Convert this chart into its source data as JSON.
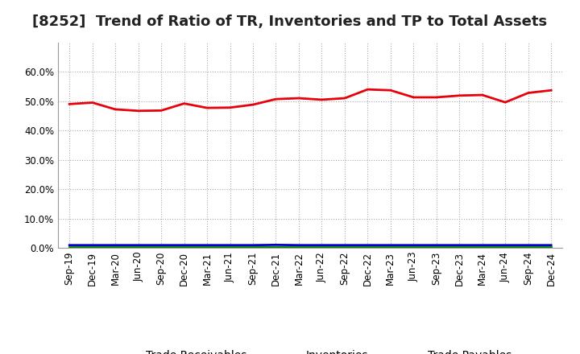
{
  "title": "[8252]  Trend of Ratio of TR, Inventories and TP to Total Assets",
  "x_labels": [
    "Sep-19",
    "Dec-19",
    "Mar-20",
    "Jun-20",
    "Sep-20",
    "Dec-20",
    "Mar-21",
    "Jun-21",
    "Sep-21",
    "Dec-21",
    "Mar-22",
    "Jun-22",
    "Sep-22",
    "Dec-22",
    "Mar-23",
    "Jun-23",
    "Sep-23",
    "Dec-23",
    "Mar-24",
    "Jun-24",
    "Sep-24",
    "Dec-24"
  ],
  "trade_receivables": [
    0.49,
    0.495,
    0.472,
    0.467,
    0.468,
    0.492,
    0.477,
    0.478,
    0.488,
    0.507,
    0.51,
    0.505,
    0.51,
    0.54,
    0.537,
    0.513,
    0.513,
    0.519,
    0.521,
    0.496,
    0.528,
    0.537
  ],
  "inventories": [
    0.009,
    0.009,
    0.009,
    0.009,
    0.009,
    0.009,
    0.009,
    0.009,
    0.009,
    0.01,
    0.009,
    0.009,
    0.009,
    0.009,
    0.009,
    0.009,
    0.009,
    0.009,
    0.009,
    0.009,
    0.009,
    0.009
  ],
  "trade_payables": [
    0.004,
    0.004,
    0.004,
    0.004,
    0.004,
    0.004,
    0.004,
    0.004,
    0.004,
    0.004,
    0.004,
    0.004,
    0.004,
    0.004,
    0.004,
    0.004,
    0.004,
    0.004,
    0.004,
    0.004,
    0.004,
    0.004
  ],
  "tr_color": "#e8000a",
  "inv_color": "#0000cc",
  "tp_color": "#008000",
  "bg_color": "#ffffff",
  "plot_bg_color": "#ffffff",
  "grid_color": "#aaaaaa",
  "ylim": [
    0.0,
    0.7
  ],
  "yticks": [
    0.0,
    0.1,
    0.2,
    0.3,
    0.4,
    0.5,
    0.6
  ],
  "line_width": 2.0,
  "title_fontsize": 13,
  "legend_fontsize": 10,
  "tick_fontsize": 8.5
}
